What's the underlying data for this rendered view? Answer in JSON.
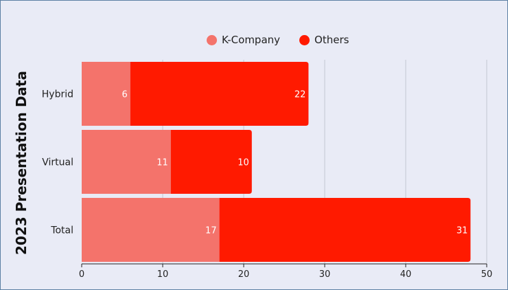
{
  "chart_data": {
    "type": "bar",
    "orientation": "horizontal",
    "stacked": true,
    "title": "",
    "xlabel": "",
    "ylabel": "2023 Presentation Data",
    "categories": [
      "Hybrid",
      "Virtual",
      "Total"
    ],
    "series": [
      {
        "name": "K-Company",
        "values": [
          6,
          11,
          17
        ],
        "color": "#f4736b"
      },
      {
        "name": "Others",
        "values": [
          22,
          10,
          31
        ],
        "color": "#ff1a00"
      }
    ],
    "xlim": [
      0,
      50
    ],
    "xticks": [
      0,
      10,
      20,
      30,
      40,
      50
    ],
    "grid": "vertical",
    "legend_position": "top-center"
  }
}
